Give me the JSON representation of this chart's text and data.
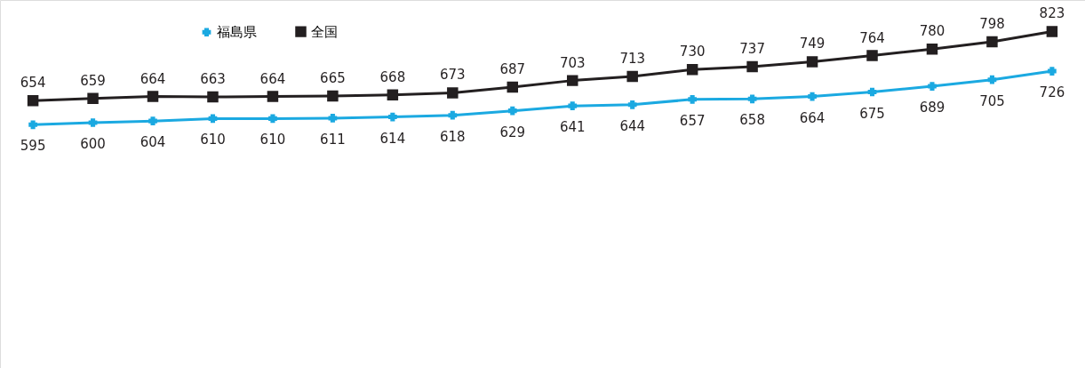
{
  "chart_data": {
    "type": "line",
    "categories": [
      null,
      null,
      null,
      null,
      null,
      null,
      null,
      null,
      null,
      null,
      null,
      null,
      null,
      null,
      null,
      null,
      null,
      null
    ],
    "series": [
      {
        "name": "福島県",
        "color": "#1ba9e1",
        "marker": "cross",
        "values": [
          595,
          600,
          604,
          610,
          610,
          611,
          614,
          618,
          629,
          641,
          644,
          657,
          658,
          664,
          675,
          689,
          705,
          726
        ]
      },
      {
        "name": "全国",
        "color": "#231f20",
        "marker": "square",
        "values": [
          654,
          659,
          664,
          663,
          664,
          665,
          668,
          673,
          687,
          703,
          713,
          730,
          737,
          749,
          764,
          780,
          798,
          823
        ]
      }
    ],
    "ylim": [
      0,
      900
    ],
    "tick_labels": false,
    "grid": false,
    "legend": "top left",
    "data_labels": true
  }
}
